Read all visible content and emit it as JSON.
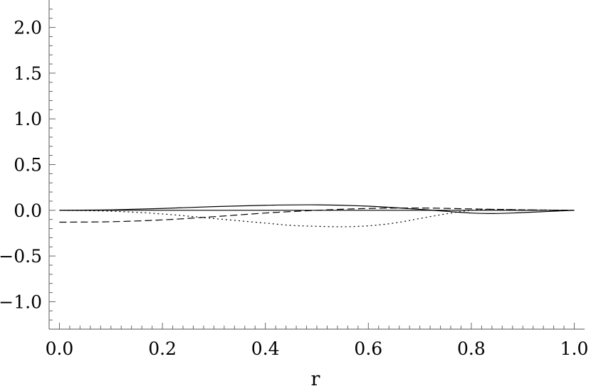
{
  "chart_data": {
    "type": "line",
    "xlabel": "r",
    "ylabel": "",
    "xlim": [
      -0.02,
      1.02
    ],
    "ylim": [
      -1.3,
      2.3
    ],
    "x_ticks": [
      0.0,
      0.2,
      0.4,
      0.6,
      0.8,
      1.0
    ],
    "x_tick_labels": [
      "0.0",
      "0.2",
      "0.4",
      "0.6",
      "0.8",
      "1.0"
    ],
    "y_ticks": [
      -1.0,
      -0.5,
      0.0,
      0.5,
      1.0,
      1.5,
      2.0
    ],
    "y_tick_labels": [
      "−1.0",
      "−0.5",
      "0.0",
      "0.5",
      "1.0",
      "1.5",
      "2.0"
    ],
    "grid": false,
    "legend": "none",
    "series": [
      {
        "style": "solid",
        "x": [
          0.0,
          0.1,
          0.2,
          0.3,
          0.4,
          0.5,
          0.6,
          0.7,
          0.8,
          0.85,
          0.9,
          1.0
        ],
        "y": [
          0.0,
          0.005,
          0.02,
          0.04,
          0.055,
          0.06,
          0.045,
          0.01,
          -0.03,
          -0.035,
          -0.025,
          0.0
        ]
      },
      {
        "style": "solid",
        "x": [
          0.0,
          1.0
        ],
        "y": [
          0.0,
          0.0
        ]
      },
      {
        "style": "dashed",
        "x": [
          0.0,
          0.1,
          0.2,
          0.3,
          0.4,
          0.5,
          0.6,
          0.7,
          0.8,
          0.9,
          1.0
        ],
        "y": [
          -0.13,
          -0.125,
          -0.105,
          -0.07,
          -0.03,
          0.0,
          0.02,
          0.025,
          0.015,
          0.005,
          0.0
        ]
      },
      {
        "style": "dotted",
        "x": [
          0.0,
          0.1,
          0.2,
          0.3,
          0.4,
          0.45,
          0.5,
          0.55,
          0.6,
          0.65,
          0.7,
          0.75,
          0.8,
          0.85,
          0.9,
          1.0
        ],
        "y": [
          0.0,
          -0.01,
          -0.04,
          -0.09,
          -0.14,
          -0.165,
          -0.175,
          -0.18,
          -0.17,
          -0.14,
          -0.09,
          -0.04,
          0.0,
          0.01,
          0.005,
          0.0
        ]
      }
    ]
  }
}
